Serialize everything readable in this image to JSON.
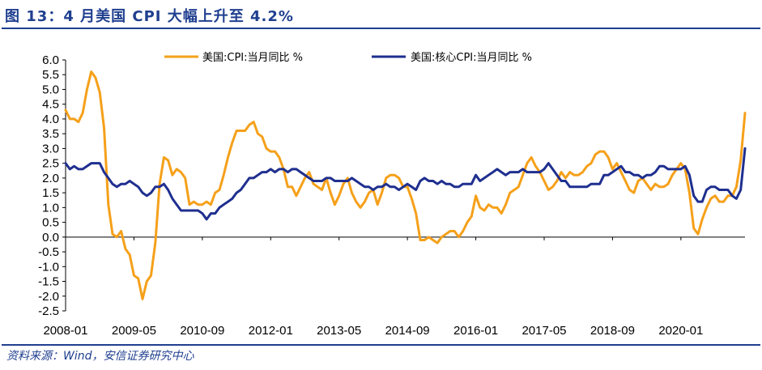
{
  "figure": {
    "title": "图 13：4 月美国 CPI 大幅上升至 4.2%",
    "source": "资料来源：Wind，安信证券研究中心"
  },
  "colors": {
    "cpi": "#F5A01A",
    "core": "#1F2F8F",
    "accent": "#1F3F8F"
  },
  "chart_data": {
    "type": "line",
    "title": "",
    "xlabel": "",
    "ylabel": "",
    "ylim": [
      -2.5,
      6.0
    ],
    "ytick_labels": [
      "6.0",
      "5.5",
      "5.0",
      "4.5",
      "4.0",
      "3.5",
      "3.0",
      "2.5",
      "2.0",
      "1.5",
      "1.0",
      "0.5",
      "0.0",
      "-0.5",
      "-1.0",
      "-1.5",
      "-2.0",
      "-2.5"
    ],
    "xtick_labels": [
      "2008-01",
      "2009-05",
      "2010-09",
      "2012-01",
      "2013-05",
      "2014-09",
      "2016-01",
      "2017-05",
      "2018-09",
      "2020-01"
    ],
    "x_start": "2008-01",
    "x_end": "2021-04",
    "legend_position": "top",
    "series": [
      {
        "name": "美国:CPI:当月同比 %",
        "color": "#F5A01A",
        "points": [
          [
            0,
            4.3
          ],
          [
            1,
            4.0
          ],
          [
            2,
            4.0
          ],
          [
            3,
            3.9
          ],
          [
            4,
            4.2
          ],
          [
            5,
            5.0
          ],
          [
            6,
            5.6
          ],
          [
            7,
            5.4
          ],
          [
            8,
            4.9
          ],
          [
            9,
            3.7
          ],
          [
            10,
            1.1
          ],
          [
            11,
            0.1
          ],
          [
            12,
            0.0
          ],
          [
            13,
            0.2
          ],
          [
            14,
            -0.4
          ],
          [
            15,
            -0.6
          ],
          [
            16,
            -1.3
          ],
          [
            17,
            -1.4
          ],
          [
            18,
            -2.1
          ],
          [
            19,
            -1.5
          ],
          [
            20,
            -1.3
          ],
          [
            21,
            -0.2
          ],
          [
            22,
            1.8
          ],
          [
            23,
            2.7
          ],
          [
            24,
            2.6
          ],
          [
            25,
            2.1
          ],
          [
            26,
            2.3
          ],
          [
            27,
            2.2
          ],
          [
            28,
            2.0
          ],
          [
            29,
            1.1
          ],
          [
            30,
            1.2
          ],
          [
            31,
            1.1
          ],
          [
            32,
            1.1
          ],
          [
            33,
            1.2
          ],
          [
            34,
            1.1
          ],
          [
            35,
            1.5
          ],
          [
            36,
            1.6
          ],
          [
            37,
            2.1
          ],
          [
            38,
            2.7
          ],
          [
            39,
            3.2
          ],
          [
            40,
            3.6
          ],
          [
            41,
            3.6
          ],
          [
            42,
            3.6
          ],
          [
            43,
            3.8
          ],
          [
            44,
            3.9
          ],
          [
            45,
            3.5
          ],
          [
            46,
            3.4
          ],
          [
            47,
            3.0
          ],
          [
            48,
            2.9
          ],
          [
            49,
            2.9
          ],
          [
            50,
            2.7
          ],
          [
            51,
            2.3
          ],
          [
            52,
            1.7
          ],
          [
            53,
            1.7
          ],
          [
            54,
            1.4
          ],
          [
            55,
            1.7
          ],
          [
            56,
            2.0
          ],
          [
            57,
            2.2
          ],
          [
            58,
            1.8
          ],
          [
            59,
            1.7
          ],
          [
            60,
            1.6
          ],
          [
            61,
            2.0
          ],
          [
            62,
            1.5
          ],
          [
            63,
            1.1
          ],
          [
            64,
            1.4
          ],
          [
            65,
            1.8
          ],
          [
            66,
            2.0
          ],
          [
            67,
            1.5
          ],
          [
            68,
            1.2
          ],
          [
            69,
            1.0
          ],
          [
            70,
            1.2
          ],
          [
            71,
            1.5
          ],
          [
            72,
            1.6
          ],
          [
            73,
            1.1
          ],
          [
            74,
            1.5
          ],
          [
            75,
            2.0
          ],
          [
            76,
            2.1
          ],
          [
            77,
            2.1
          ],
          [
            78,
            2.0
          ],
          [
            79,
            1.7
          ],
          [
            80,
            1.7
          ],
          [
            81,
            1.3
          ],
          [
            82,
            0.8
          ],
          [
            83,
            -0.1
          ],
          [
            84,
            -0.1
          ],
          [
            85,
            0.0
          ],
          [
            86,
            -0.1
          ],
          [
            87,
            -0.2
          ],
          [
            88,
            0.0
          ],
          [
            89,
            0.1
          ],
          [
            90,
            0.2
          ],
          [
            91,
            0.2
          ],
          [
            92,
            0.0
          ],
          [
            93,
            0.2
          ],
          [
            94,
            0.5
          ],
          [
            95,
            0.7
          ],
          [
            96,
            1.4
          ],
          [
            97,
            1.0
          ],
          [
            98,
            0.9
          ],
          [
            99,
            1.1
          ],
          [
            100,
            1.0
          ],
          [
            101,
            1.0
          ],
          [
            102,
            0.8
          ],
          [
            103,
            1.1
          ],
          [
            104,
            1.5
          ],
          [
            105,
            1.6
          ],
          [
            106,
            1.7
          ],
          [
            107,
            2.1
          ],
          [
            108,
            2.5
          ],
          [
            109,
            2.7
          ],
          [
            110,
            2.4
          ],
          [
            111,
            2.2
          ],
          [
            112,
            1.9
          ],
          [
            113,
            1.6
          ],
          [
            114,
            1.7
          ],
          [
            115,
            1.9
          ],
          [
            116,
            2.2
          ],
          [
            117,
            2.0
          ],
          [
            118,
            2.2
          ],
          [
            119,
            2.1
          ],
          [
            120,
            2.1
          ],
          [
            121,
            2.2
          ],
          [
            122,
            2.4
          ],
          [
            123,
            2.5
          ],
          [
            124,
            2.8
          ],
          [
            125,
            2.9
          ],
          [
            126,
            2.9
          ],
          [
            127,
            2.7
          ],
          [
            128,
            2.3
          ],
          [
            129,
            2.5
          ],
          [
            130,
            2.2
          ],
          [
            131,
            1.9
          ],
          [
            132,
            1.6
          ],
          [
            133,
            1.5
          ],
          [
            134,
            1.9
          ],
          [
            135,
            2.0
          ],
          [
            136,
            1.8
          ],
          [
            137,
            1.6
          ],
          [
            138,
            1.8
          ],
          [
            139,
            1.7
          ],
          [
            140,
            1.7
          ],
          [
            141,
            1.8
          ],
          [
            142,
            2.1
          ],
          [
            143,
            2.3
          ],
          [
            144,
            2.5
          ],
          [
            145,
            2.3
          ],
          [
            146,
            1.5
          ],
          [
            147,
            0.3
          ],
          [
            148,
            0.1
          ],
          [
            149,
            0.6
          ],
          [
            150,
            1.0
          ],
          [
            151,
            1.3
          ],
          [
            152,
            1.4
          ],
          [
            153,
            1.2
          ],
          [
            154,
            1.2
          ],
          [
            155,
            1.4
          ],
          [
            156,
            1.4
          ],
          [
            157,
            1.7
          ],
          [
            158,
            2.6
          ],
          [
            159,
            4.2
          ]
        ]
      },
      {
        "name": "美国:核心CPI:当月同比 %",
        "color": "#1F2F8F",
        "points": [
          [
            0,
            2.5
          ],
          [
            1,
            2.3
          ],
          [
            2,
            2.4
          ],
          [
            3,
            2.3
          ],
          [
            4,
            2.3
          ],
          [
            5,
            2.4
          ],
          [
            6,
            2.5
          ],
          [
            7,
            2.5
          ],
          [
            8,
            2.5
          ],
          [
            9,
            2.2
          ],
          [
            10,
            2.0
          ],
          [
            11,
            1.8
          ],
          [
            12,
            1.7
          ],
          [
            13,
            1.8
          ],
          [
            14,
            1.8
          ],
          [
            15,
            1.9
          ],
          [
            16,
            1.8
          ],
          [
            17,
            1.7
          ],
          [
            18,
            1.5
          ],
          [
            19,
            1.4
          ],
          [
            20,
            1.5
          ],
          [
            21,
            1.7
          ],
          [
            22,
            1.7
          ],
          [
            23,
            1.8
          ],
          [
            24,
            1.6
          ],
          [
            25,
            1.3
          ],
          [
            26,
            1.1
          ],
          [
            27,
            0.9
          ],
          [
            28,
            0.9
          ],
          [
            29,
            0.9
          ],
          [
            30,
            0.9
          ],
          [
            31,
            0.9
          ],
          [
            32,
            0.8
          ],
          [
            33,
            0.6
          ],
          [
            34,
            0.8
          ],
          [
            35,
            0.8
          ],
          [
            36,
            1.0
          ],
          [
            37,
            1.1
          ],
          [
            38,
            1.2
          ],
          [
            39,
            1.3
          ],
          [
            40,
            1.5
          ],
          [
            41,
            1.6
          ],
          [
            42,
            1.8
          ],
          [
            43,
            2.0
          ],
          [
            44,
            2.0
          ],
          [
            45,
            2.1
          ],
          [
            46,
            2.2
          ],
          [
            47,
            2.2
          ],
          [
            48,
            2.3
          ],
          [
            49,
            2.2
          ],
          [
            50,
            2.3
          ],
          [
            51,
            2.3
          ],
          [
            52,
            2.2
          ],
          [
            53,
            2.3
          ],
          [
            54,
            2.3
          ],
          [
            55,
            2.2
          ],
          [
            56,
            2.1
          ],
          [
            57,
            2.0
          ],
          [
            58,
            1.9
          ],
          [
            59,
            1.9
          ],
          [
            60,
            1.9
          ],
          [
            61,
            2.0
          ],
          [
            62,
            2.0
          ],
          [
            63,
            1.9
          ],
          [
            64,
            1.9
          ],
          [
            65,
            1.9
          ],
          [
            66,
            1.9
          ],
          [
            67,
            2.0
          ],
          [
            68,
            1.9
          ],
          [
            69,
            1.8
          ],
          [
            70,
            1.7
          ],
          [
            71,
            1.7
          ],
          [
            72,
            1.6
          ],
          [
            73,
            1.7
          ],
          [
            74,
            1.7
          ],
          [
            75,
            1.8
          ],
          [
            76,
            1.7
          ],
          [
            77,
            1.7
          ],
          [
            78,
            1.6
          ],
          [
            79,
            1.7
          ],
          [
            80,
            1.8
          ],
          [
            81,
            1.7
          ],
          [
            82,
            1.6
          ],
          [
            83,
            1.9
          ],
          [
            84,
            2.0
          ],
          [
            85,
            1.9
          ],
          [
            86,
            1.9
          ],
          [
            87,
            1.8
          ],
          [
            88,
            1.9
          ],
          [
            89,
            1.8
          ],
          [
            90,
            1.8
          ],
          [
            91,
            1.7
          ],
          [
            92,
            1.7
          ],
          [
            93,
            1.8
          ],
          [
            94,
            1.8
          ],
          [
            95,
            1.8
          ],
          [
            96,
            2.1
          ],
          [
            97,
            1.9
          ],
          [
            98,
            2.0
          ],
          [
            99,
            2.1
          ],
          [
            100,
            2.2
          ],
          [
            101,
            2.3
          ],
          [
            102,
            2.2
          ],
          [
            103,
            2.1
          ],
          [
            104,
            2.2
          ],
          [
            105,
            2.2
          ],
          [
            106,
            2.2
          ],
          [
            107,
            2.3
          ],
          [
            108,
            2.2
          ],
          [
            109,
            2.2
          ],
          [
            110,
            2.2
          ],
          [
            111,
            2.2
          ],
          [
            112,
            2.3
          ],
          [
            113,
            2.5
          ],
          [
            114,
            2.3
          ],
          [
            115,
            2.1
          ],
          [
            116,
            1.9
          ],
          [
            117,
            1.9
          ],
          [
            118,
            1.7
          ],
          [
            119,
            1.7
          ],
          [
            120,
            1.7
          ],
          [
            121,
            1.7
          ],
          [
            122,
            1.7
          ],
          [
            123,
            1.8
          ],
          [
            124,
            1.8
          ],
          [
            125,
            1.8
          ],
          [
            126,
            2.1
          ],
          [
            127,
            2.1
          ],
          [
            128,
            2.2
          ],
          [
            129,
            2.3
          ],
          [
            130,
            2.4
          ],
          [
            131,
            2.2
          ],
          [
            132,
            2.2
          ],
          [
            133,
            2.1
          ],
          [
            134,
            2.1
          ],
          [
            135,
            2.0
          ],
          [
            136,
            2.1
          ],
          [
            137,
            2.1
          ],
          [
            138,
            2.2
          ],
          [
            139,
            2.4
          ],
          [
            140,
            2.4
          ],
          [
            141,
            2.3
          ],
          [
            142,
            2.3
          ],
          [
            143,
            2.3
          ],
          [
            144,
            2.3
          ],
          [
            145,
            2.4
          ],
          [
            146,
            2.1
          ],
          [
            147,
            1.4
          ],
          [
            148,
            1.2
          ],
          [
            149,
            1.2
          ],
          [
            150,
            1.6
          ],
          [
            151,
            1.7
          ],
          [
            152,
            1.7
          ],
          [
            153,
            1.6
          ],
          [
            154,
            1.6
          ],
          [
            155,
            1.6
          ],
          [
            156,
            1.4
          ],
          [
            157,
            1.3
          ],
          [
            158,
            1.6
          ],
          [
            159,
            3.0
          ]
        ]
      }
    ]
  }
}
